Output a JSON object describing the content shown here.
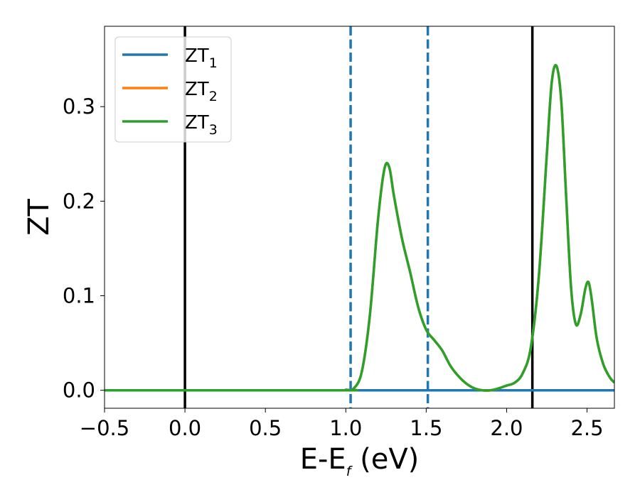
{
  "chart_data": {
    "type": "line",
    "title": "",
    "xlabel": {
      "main": "E-E",
      "sub": "f",
      "tail": " (eV)"
    },
    "ylabel": "ZT",
    "xlim": [
      -0.5,
      2.67
    ],
    "ylim": [
      -0.019,
      0.385
    ],
    "x_ticks": [
      {
        "value": -0.5,
        "label": "−0.5"
      },
      {
        "value": 0.0,
        "label": "0.0"
      },
      {
        "value": 0.5,
        "label": "0.5"
      },
      {
        "value": 1.0,
        "label": "1.0"
      },
      {
        "value": 1.5,
        "label": "1.5"
      },
      {
        "value": 2.0,
        "label": "2.0"
      },
      {
        "value": 2.5,
        "label": "2.5"
      }
    ],
    "y_ticks": [
      {
        "value": 0.0,
        "label": "0.0"
      },
      {
        "value": 0.1,
        "label": "0.1"
      },
      {
        "value": 0.2,
        "label": "0.2"
      },
      {
        "value": 0.3,
        "label": "0.3"
      }
    ],
    "grid": false,
    "legend_position": "top-left",
    "series": [
      {
        "name": "ZT",
        "name_sub": "1",
        "color": "#1f77b4",
        "x": [
          -0.5,
          2.67
        ],
        "y": [
          0.0,
          0.0
        ]
      },
      {
        "name": "ZT",
        "name_sub": "2",
        "color": "#ff7f0e",
        "x": [
          -0.5,
          0.95,
          1.0,
          1.05,
          1.1,
          1.15,
          1.2,
          1.24,
          1.27,
          1.3,
          1.35,
          1.4,
          1.45,
          1.5,
          1.55,
          1.6,
          1.65,
          1.7,
          1.75,
          1.8,
          1.85,
          1.9,
          1.95,
          2.0,
          2.05,
          2.1,
          2.15,
          2.2,
          2.25,
          2.28,
          2.31,
          2.34,
          2.37,
          2.4,
          2.43,
          2.46,
          2.49,
          2.51,
          2.53,
          2.56,
          2.6,
          2.64,
          2.67
        ],
        "y": [
          0.0,
          0.0,
          0.0005,
          0.002,
          0.02,
          0.08,
          0.18,
          0.234,
          0.236,
          0.205,
          0.16,
          0.125,
          0.088,
          0.064,
          0.053,
          0.042,
          0.026,
          0.015,
          0.007,
          0.002,
          0.0,
          0.0,
          0.002,
          0.005,
          0.008,
          0.018,
          0.045,
          0.12,
          0.25,
          0.325,
          0.343,
          0.305,
          0.205,
          0.11,
          0.07,
          0.08,
          0.108,
          0.114,
          0.095,
          0.055,
          0.028,
          0.014,
          0.008
        ]
      },
      {
        "name": "ZT",
        "name_sub": "3",
        "color": "#2ca02c",
        "x": [
          -0.5,
          0.95,
          1.0,
          1.05,
          1.1,
          1.15,
          1.2,
          1.24,
          1.27,
          1.3,
          1.35,
          1.4,
          1.45,
          1.5,
          1.55,
          1.6,
          1.65,
          1.7,
          1.75,
          1.8,
          1.85,
          1.9,
          1.95,
          2.0,
          2.05,
          2.1,
          2.15,
          2.2,
          2.25,
          2.28,
          2.31,
          2.34,
          2.37,
          2.4,
          2.43,
          2.46,
          2.49,
          2.51,
          2.53,
          2.56,
          2.6,
          2.64,
          2.67
        ],
        "y": [
          0.0,
          0.0,
          0.0005,
          0.002,
          0.02,
          0.08,
          0.18,
          0.234,
          0.236,
          0.205,
          0.16,
          0.125,
          0.088,
          0.064,
          0.053,
          0.042,
          0.026,
          0.015,
          0.007,
          0.002,
          0.0,
          0.0,
          0.002,
          0.005,
          0.008,
          0.018,
          0.045,
          0.12,
          0.25,
          0.325,
          0.343,
          0.305,
          0.205,
          0.11,
          0.07,
          0.08,
          0.108,
          0.114,
          0.095,
          0.055,
          0.028,
          0.014,
          0.008
        ]
      }
    ],
    "vertical_lines": [
      {
        "x": 0.0,
        "style": "solid",
        "color": "#000000"
      },
      {
        "x": 1.03,
        "style": "dashed",
        "color": "#1f77b4"
      },
      {
        "x": 1.51,
        "style": "dashed",
        "color": "#1f77b4"
      },
      {
        "x": 2.16,
        "style": "solid",
        "color": "#000000"
      }
    ]
  }
}
